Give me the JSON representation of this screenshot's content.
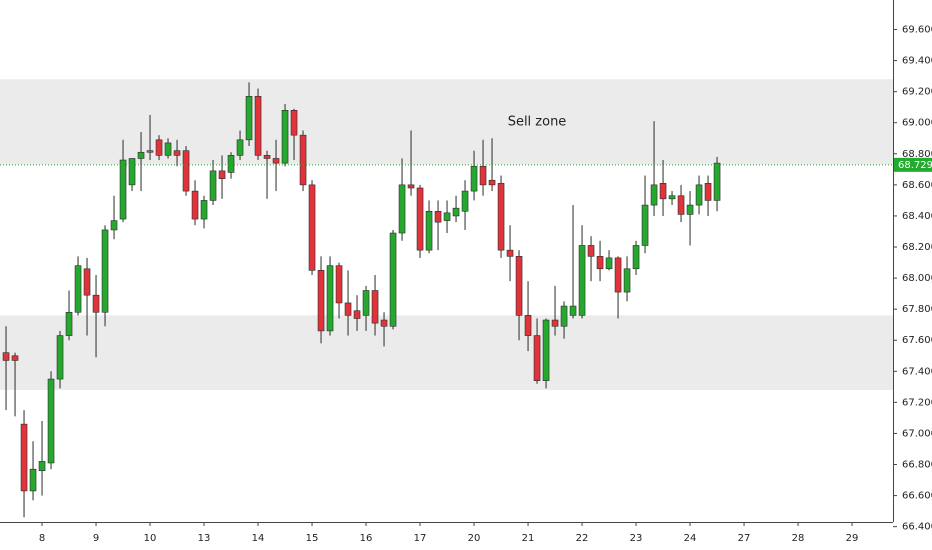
{
  "chart_data": {
    "type": "candlestick",
    "annotation": "Sell zone",
    "up_color": "#26a82f",
    "down_color": "#e0333a",
    "outline_color": "#2b2b2b",
    "zone_color": "#ebebeb",
    "zones": [
      [
        68.73,
        69.28
      ],
      [
        67.28,
        67.76
      ]
    ],
    "last_price": 68.729,
    "last_price_color": "#22ab2f",
    "x": [
      0,
      1,
      2,
      3,
      4,
      5,
      6,
      7,
      8,
      9,
      10,
      11,
      12,
      13,
      14,
      15,
      16,
      17,
      18,
      19,
      20,
      21,
      22,
      23,
      24,
      25,
      26,
      27,
      28,
      29,
      30,
      31,
      32,
      33,
      34,
      35,
      36,
      37,
      38,
      39,
      40,
      41,
      42,
      43,
      44,
      45,
      46,
      47,
      48,
      49,
      50,
      51,
      52,
      53,
      54,
      55,
      56,
      57,
      58,
      59,
      60,
      61,
      62,
      63,
      64,
      65,
      66,
      67,
      68,
      69,
      70,
      71,
      72,
      73,
      74,
      75,
      76,
      77,
      78,
      79
    ],
    "open": [
      67.52,
      67.5,
      67.06,
      66.63,
      66.76,
      66.81,
      67.35,
      67.63,
      67.78,
      68.06,
      67.89,
      67.78,
      68.31,
      68.38,
      68.6,
      68.77,
      68.81,
      68.89,
      68.79,
      68.82,
      68.82,
      68.56,
      68.38,
      68.5,
      68.69,
      68.68,
      68.79,
      68.89,
      69.17,
      68.79,
      68.77,
      68.74,
      69.08,
      68.92,
      68.6,
      68.05,
      67.66,
      68.08,
      67.84,
      67.79,
      67.76,
      67.92,
      67.73,
      67.69,
      68.29,
      68.6,
      68.58,
      68.18,
      68.43,
      68.37,
      68.4,
      68.43,
      68.56,
      68.72,
      68.63,
      68.61,
      68.18,
      68.14,
      67.76,
      67.63,
      67.34,
      67.73,
      67.69,
      67.76,
      67.76,
      68.21,
      68.14,
      68.06,
      68.13,
      67.91,
      68.06,
      68.21,
      68.47,
      68.61,
      68.51,
      68.53,
      68.41,
      68.47,
      68.61,
      68.5
    ],
    "high": [
      67.69,
      67.52,
      67.15,
      66.95,
      67.08,
      67.4,
      67.66,
      67.92,
      68.14,
      68.13,
      68.02,
      68.34,
      68.53,
      68.89,
      68.77,
      68.94,
      69.05,
      68.92,
      68.9,
      68.89,
      68.85,
      68.63,
      68.53,
      68.76,
      68.79,
      68.81,
      68.95,
      69.26,
      69.22,
      68.82,
      68.89,
      69.12,
      69.09,
      68.95,
      68.63,
      68.14,
      68.14,
      68.1,
      68.05,
      67.89,
      67.95,
      68.02,
      67.78,
      68.31,
      68.77,
      68.95,
      68.6,
      68.5,
      68.5,
      68.5,
      68.53,
      68.63,
      68.82,
      68.89,
      68.9,
      68.66,
      68.34,
      68.18,
      67.98,
      67.74,
      67.74,
      67.95,
      67.85,
      68.47,
      68.34,
      68.27,
      68.24,
      68.18,
      68.14,
      68.14,
      68.24,
      68.66,
      69.01,
      68.76,
      68.56,
      68.6,
      68.56,
      68.66,
      68.66,
      68.78
    ],
    "low": [
      67.15,
      67.11,
      66.46,
      66.57,
      66.6,
      66.77,
      67.29,
      67.6,
      67.76,
      67.63,
      67.49,
      67.69,
      68.25,
      68.36,
      68.56,
      68.56,
      68.76,
      68.76,
      68.77,
      68.72,
      68.53,
      68.34,
      68.32,
      68.47,
      68.51,
      68.64,
      68.76,
      68.85,
      68.76,
      68.51,
      68.56,
      68.72,
      68.76,
      68.56,
      68.02,
      67.58,
      67.63,
      67.74,
      67.63,
      67.66,
      67.66,
      67.63,
      67.56,
      67.67,
      68.24,
      68.53,
      68.13,
      68.16,
      68.18,
      68.29,
      68.36,
      68.31,
      68.5,
      68.53,
      68.56,
      68.13,
      67.98,
      67.6,
      67.53,
      67.32,
      67.29,
      67.63,
      67.61,
      67.74,
      67.74,
      67.98,
      67.98,
      68.05,
      67.74,
      67.85,
      68.02,
      68.16,
      68.4,
      68.4,
      68.47,
      68.36,
      68.21,
      68.41,
      68.4,
      68.43
    ],
    "close": [
      67.47,
      67.47,
      66.63,
      66.77,
      66.82,
      67.35,
      67.63,
      67.78,
      68.08,
      67.89,
      67.78,
      68.31,
      68.37,
      68.76,
      68.77,
      68.81,
      68.82,
      68.79,
      68.87,
      68.79,
      68.56,
      68.38,
      68.5,
      68.69,
      68.64,
      68.79,
      68.89,
      69.17,
      68.79,
      68.77,
      68.74,
      69.08,
      68.92,
      68.6,
      68.05,
      67.66,
      68.08,
      67.84,
      67.76,
      67.74,
      67.92,
      67.71,
      67.69,
      68.29,
      68.6,
      68.58,
      68.18,
      68.43,
      68.36,
      68.42,
      68.45,
      68.56,
      68.72,
      68.6,
      68.6,
      68.18,
      68.14,
      67.76,
      67.63,
      67.34,
      67.73,
      67.69,
      67.82,
      67.82,
      68.21,
      68.14,
      68.06,
      68.13,
      67.91,
      68.06,
      68.21,
      68.47,
      68.6,
      68.51,
      68.53,
      68.41,
      68.47,
      68.6,
      68.5,
      68.74
    ],
    "xlim": [
      -0.67,
      98.55
    ],
    "ylim": [
      66.43,
      69.79
    ],
    "xticks": [
      {
        "value": 4,
        "label": "8"
      },
      {
        "value": 10,
        "label": "9"
      },
      {
        "value": 16,
        "label": "10"
      },
      {
        "value": 22,
        "label": "13"
      },
      {
        "value": 28,
        "label": "14"
      },
      {
        "value": 34,
        "label": "15"
      },
      {
        "value": 40,
        "label": "16"
      },
      {
        "value": 46,
        "label": "17"
      },
      {
        "value": 52,
        "label": "20"
      },
      {
        "value": 58,
        "label": "21"
      },
      {
        "value": 64,
        "label": "22"
      },
      {
        "value": 70,
        "label": "23"
      },
      {
        "value": 76,
        "label": "24"
      },
      {
        "value": 82,
        "label": "27"
      },
      {
        "value": 88,
        "label": "28"
      },
      {
        "value": 94,
        "label": "29"
      }
    ],
    "yticks": [
      {
        "value": 66.4,
        "label": "66.400"
      },
      {
        "value": 66.6,
        "label": "66.600"
      },
      {
        "value": 66.8,
        "label": "66.800"
      },
      {
        "value": 67.0,
        "label": "67.000"
      },
      {
        "value": 67.2,
        "label": "67.200"
      },
      {
        "value": 67.4,
        "label": "67.400"
      },
      {
        "value": 67.6,
        "label": "67.600"
      },
      {
        "value": 67.8,
        "label": "67.800"
      },
      {
        "value": 68.0,
        "label": "68.000"
      },
      {
        "value": 68.2,
        "label": "68.200"
      },
      {
        "value": 68.4,
        "label": "68.400"
      },
      {
        "value": 68.6,
        "label": "68.600"
      },
      {
        "value": 68.8,
        "label": "68.800"
      },
      {
        "value": 69.0,
        "label": "69.000"
      },
      {
        "value": 69.2,
        "label": "69.200"
      },
      {
        "value": 69.4,
        "label": "69.400"
      },
      {
        "value": 69.6,
        "label": "69.600"
      }
    ]
  }
}
